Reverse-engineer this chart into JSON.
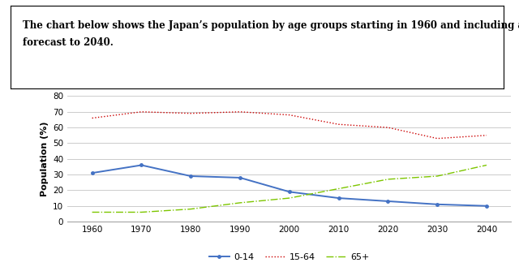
{
  "title_box_text": "The chart below shows the Japan’s population by age groups starting in 1960 and including a\nforecast to 2040.",
  "years": [
    1960,
    1970,
    1980,
    1990,
    2000,
    2010,
    2020,
    2030,
    2040
  ],
  "age_0_14": [
    31,
    36,
    29,
    28,
    19,
    15,
    13,
    11,
    10
  ],
  "age_15_64": [
    66,
    70,
    69,
    70,
    68,
    62,
    60,
    53,
    55
  ],
  "age_65plus": [
    6,
    6,
    8,
    12,
    15,
    21,
    27,
    29,
    36
  ],
  "ylabel": "Population (%)",
  "ylim": [
    0,
    80
  ],
  "yticks": [
    0,
    10,
    20,
    30,
    40,
    50,
    60,
    70,
    80
  ],
  "xlim": [
    1955,
    2045
  ],
  "xticks": [
    1960,
    1970,
    1980,
    1990,
    2000,
    2010,
    2020,
    2030,
    2040
  ],
  "color_0_14": "#4472C4",
  "color_15_64": "#CC0000",
  "color_65plus": "#7DC600",
  "legend_labels": [
    "0-14",
    "15-64",
    "65+"
  ],
  "grid_color": "#cccccc",
  "title_fontsize": 8.5,
  "axis_label_fontsize": 8,
  "tick_fontsize": 7.5,
  "legend_fontsize": 8
}
